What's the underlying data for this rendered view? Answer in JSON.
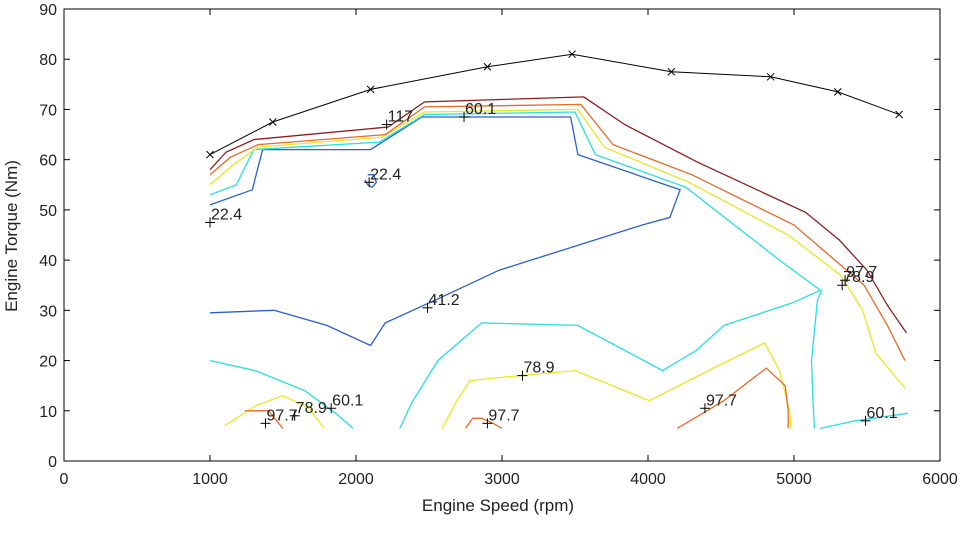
{
  "chart_data": {
    "type": "line",
    "title": "",
    "xlabel": "Engine Speed (rpm)",
    "ylabel": "Engine Torque (Nm)",
    "xlim": [
      0,
      6000
    ],
    "ylim": [
      0,
      90
    ],
    "x_ticks": [
      "0",
      "1000",
      "2000",
      "3000",
      "4000",
      "5000",
      "6000"
    ],
    "y_ticks": [
      "0",
      "10",
      "20",
      "30",
      "40",
      "50",
      "60",
      "70",
      "80",
      "90"
    ],
    "grid": false,
    "max_torque_curve": {
      "color": "#000000",
      "marker": "x",
      "points": [
        [
          1000,
          61
        ],
        [
          1430,
          67.5
        ],
        [
          2100,
          74
        ],
        [
          2900,
          78.5
        ],
        [
          3480,
          81
        ],
        [
          4160,
          77.5
        ],
        [
          4840,
          76.5
        ],
        [
          5300,
          73.5
        ],
        [
          5720,
          69
        ]
      ]
    },
    "contours": [
      {
        "color": "#2a5fd6",
        "paths": [
          [
            [
              1000,
              51
            ],
            [
              1290,
              54
            ],
            [
              1360,
              62
            ],
            [
              2100,
              62
            ],
            [
              2450,
              68.5
            ],
            [
              3470,
              68.5
            ],
            [
              3520,
              61
            ],
            [
              4220,
              54
            ],
            [
              4150,
              48.5
            ],
            [
              3960,
              47
            ],
            [
              2980,
              38
            ],
            [
              2540,
              32
            ],
            [
              2200,
              27.5
            ],
            [
              2100,
              23
            ],
            [
              1800,
              27
            ],
            [
              1440,
              30
            ],
            [
              1000,
              29.5
            ]
          ],
          [
            [
              2060,
              56
            ],
            [
              2080,
              55
            ],
            [
              2110,
              54.5
            ],
            [
              2140,
              55.5
            ],
            [
              2120,
              57
            ],
            [
              2080,
              57
            ]
          ]
        ]
      },
      {
        "color": "#24e0e0",
        "paths": [
          [
            [
              1000,
              53
            ],
            [
              1180,
              55
            ],
            [
              1300,
              62
            ],
            [
              2160,
              63.5
            ],
            [
              2470,
              69
            ],
            [
              3500,
              69.5
            ],
            [
              3640,
              61
            ],
            [
              4260,
              54.5
            ],
            [
              4900,
              40
            ],
            [
              5180,
              34
            ],
            [
              4990,
              31.5
            ],
            [
              4520,
              27
            ],
            [
              4330,
              22
            ],
            [
              4100,
              18
            ],
            [
              3520,
              27
            ],
            [
              2860,
              27.5
            ],
            [
              2560,
              20
            ],
            [
              2380,
              11.5
            ],
            [
              2300,
              6.5
            ]
          ],
          [
            [
              1000,
              20
            ],
            [
              1310,
              18
            ],
            [
              1650,
              14
            ],
            [
              1860,
              9.5
            ],
            [
              1980,
              6.5
            ]
          ],
          [
            [
              5140,
              6.5
            ],
            [
              5130,
              12
            ],
            [
              5120,
              20
            ],
            [
              5160,
              32
            ],
            [
              5190,
              34
            ]
          ],
          [
            [
              5180,
              6.5
            ],
            [
              5420,
              8
            ],
            [
              5780,
              9.5
            ]
          ]
        ]
      },
      {
        "color": "#e8e820",
        "paths": [
          [
            [
              1000,
              55
            ],
            [
              1160,
              59
            ],
            [
              1330,
              62.5
            ],
            [
              2180,
              64.5
            ],
            [
              2470,
              69.5
            ],
            [
              3520,
              70
            ],
            [
              3700,
              62.5
            ],
            [
              4280,
              55.5
            ],
            [
              4960,
              45
            ],
            [
              5320,
              37
            ],
            [
              5470,
              30
            ],
            [
              5560,
              21.5
            ],
            [
              5760,
              14.5
            ]
          ],
          [
            [
              2590,
              6.5
            ],
            [
              2690,
              12
            ],
            [
              2780,
              16
            ],
            [
              3120,
              17
            ],
            [
              3500,
              18
            ],
            [
              4010,
              12
            ],
            [
              4480,
              19
            ],
            [
              4800,
              23.5
            ],
            [
              4900,
              18
            ],
            [
              4970,
              10
            ],
            [
              4980,
              6.5
            ]
          ],
          [
            [
              1100,
              7
            ],
            [
              1310,
              11
            ],
            [
              1500,
              13
            ],
            [
              1680,
              10.5
            ],
            [
              1780,
              6.5
            ]
          ]
        ]
      },
      {
        "color": "#e86a28",
        "paths": [
          [
            [
              1000,
              57
            ],
            [
              1140,
              60.5
            ],
            [
              1330,
              63
            ],
            [
              2200,
              65
            ],
            [
              2470,
              70.5
            ],
            [
              3540,
              71
            ],
            [
              3760,
              63
            ],
            [
              4300,
              57
            ],
            [
              5000,
              47
            ],
            [
              5280,
              40
            ],
            [
              5480,
              35
            ],
            [
              5640,
              27
            ],
            [
              5760,
              20
            ]
          ],
          [
            [
              4200,
              6.5
            ],
            [
              4520,
              12
            ],
            [
              4810,
              18.5
            ],
            [
              4940,
              15
            ],
            [
              4960,
              10
            ],
            [
              4960,
              6.5
            ]
          ],
          [
            [
              2750,
              6.5
            ],
            [
              2800,
              8.5
            ],
            [
              2860,
              8.5
            ],
            [
              2940,
              7.5
            ],
            [
              3000,
              6.5
            ]
          ],
          [
            [
              1240,
              10
            ],
            [
              1400,
              10
            ],
            [
              1500,
              6.5
            ]
          ]
        ]
      },
      {
        "color": "#8e1e1e",
        "paths": [
          [
            [
              1000,
              58
            ],
            [
              1110,
              61.5
            ],
            [
              1300,
              64
            ],
            [
              2220,
              66.5
            ],
            [
              2470,
              71.5
            ],
            [
              3560,
              72.5
            ],
            [
              3840,
              67
            ],
            [
              4340,
              59.5
            ],
            [
              5080,
              49.5
            ],
            [
              5310,
              44
            ],
            [
              5500,
              38
            ],
            [
              5640,
              31
            ],
            [
              5770,
              25.5
            ]
          ]
        ]
      }
    ],
    "contour_labels": [
      {
        "text": "22.4",
        "x": 1000,
        "y": 47.5
      },
      {
        "text": "22.4",
        "x": 2090,
        "y": 55.5
      },
      {
        "text": "117",
        "x": 2210,
        "y": 67
      },
      {
        "text": "60.1",
        "x": 2740,
        "y": 68.5
      },
      {
        "text": "41.2",
        "x": 2490,
        "y": 30.5
      },
      {
        "text": "78.9",
        "x": 3140,
        "y": 17
      },
      {
        "text": "97.7",
        "x": 2900,
        "y": 7.5
      },
      {
        "text": "97.7",
        "x": 4390,
        "y": 10.5
      },
      {
        "text": "97.7",
        "x": 1380,
        "y": 7.5
      },
      {
        "text": "78.9",
        "x": 1580,
        "y": 9
      },
      {
        "text": "60.1",
        "x": 1830,
        "y": 10.5
      },
      {
        "text": "97.7",
        "x": 5350,
        "y": 36
      },
      {
        "text": "78.9",
        "x": 5330,
        "y": 35
      },
      {
        "text": "60.1",
        "x": 5490,
        "y": 8
      }
    ]
  }
}
